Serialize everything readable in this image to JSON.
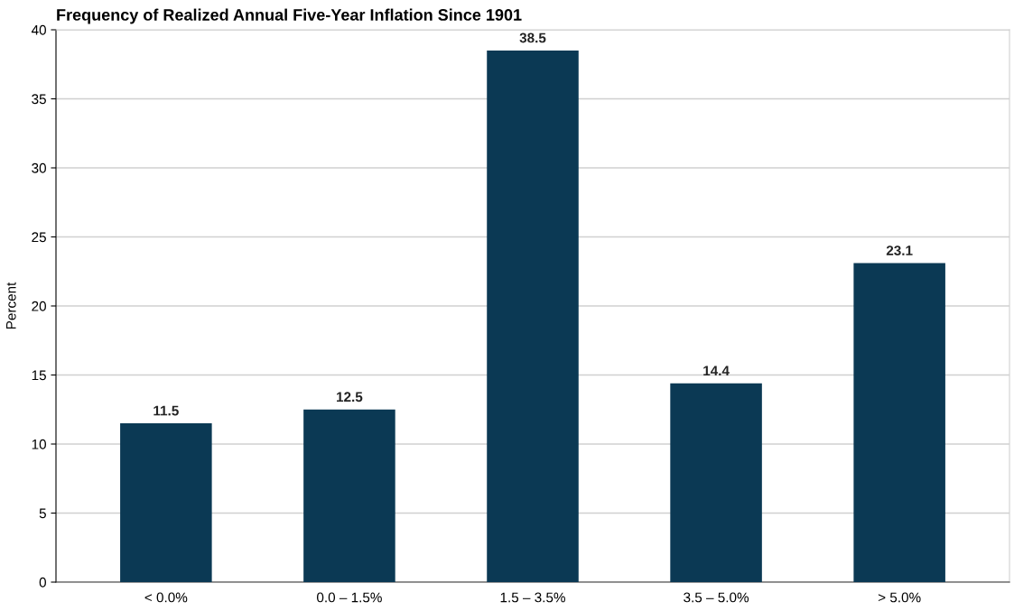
{
  "chart_data": {
    "type": "bar",
    "title": "Frequency of Realized Annual Five-Year Inflation Since 1901",
    "ylabel": "Percent",
    "categories": [
      "< 0.0%",
      "0.0 – 1.5%",
      "1.5 – 3.5%",
      "3.5 – 5.0%",
      "> 5.0%"
    ],
    "values": [
      11.5,
      12.5,
      38.5,
      14.4,
      23.1
    ],
    "color": "#0b3954",
    "ylim": [
      0,
      40
    ],
    "yticks": [
      0,
      5,
      10,
      15,
      20,
      25,
      30,
      35,
      40
    ],
    "grid": "y",
    "data_labels": true
  }
}
